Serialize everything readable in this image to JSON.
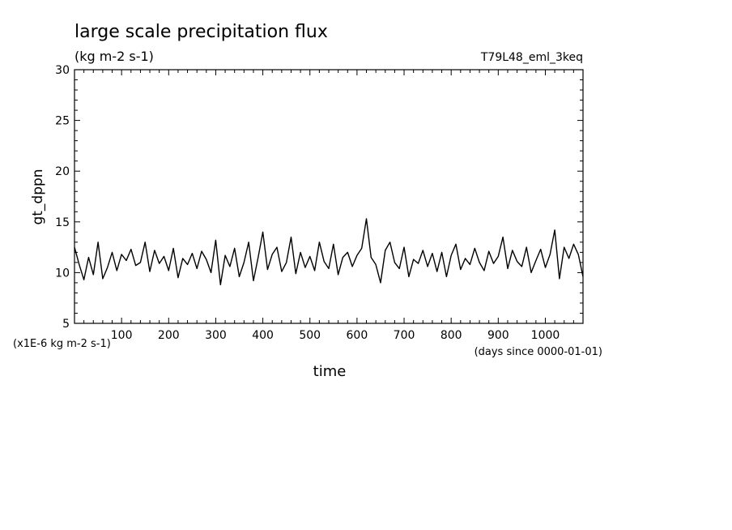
{
  "chart_data": {
    "type": "line",
    "title": "large scale precipitation flux",
    "subtitle": "(kg m-2 s-1)",
    "run_label": "T79L48_eml_3keq",
    "ylabel": "gt_dppn",
    "xlabel": "time",
    "y_scale_note": "(x1E-6 kg m-2 s-1)",
    "x_units_note": "(days since 0000-01-01)",
    "xlim": [
      0,
      1080
    ],
    "ylim": [
      5,
      30
    ],
    "x_ticks": [
      100,
      200,
      300,
      400,
      500,
      600,
      700,
      800,
      900,
      1000
    ],
    "x_tick_labels": [
      "100",
      "200",
      "300",
      "400",
      "500",
      "600",
      "700",
      "800",
      "900",
      "1000"
    ],
    "y_ticks": [
      5,
      10,
      15,
      20,
      25,
      30
    ],
    "y_tick_labels": [
      "5",
      "10",
      "15",
      "20",
      "25",
      "30"
    ],
    "grid": false,
    "line_color": "#000000",
    "series": [
      {
        "x": [
          0,
          10,
          20,
          30,
          40,
          50,
          60,
          70,
          80,
          90,
          100,
          110,
          120,
          130,
          140,
          150,
          160,
          170,
          180,
          190,
          200,
          210,
          220,
          230,
          240,
          250,
          260,
          270,
          280,
          290,
          300,
          310,
          320,
          330,
          340,
          350,
          360,
          370,
          380,
          390,
          400,
          410,
          420,
          430,
          440,
          450,
          460,
          470,
          480,
          490,
          500,
          510,
          520,
          530,
          540,
          550,
          560,
          570,
          580,
          590,
          600,
          610,
          620,
          630,
          640,
          650,
          660,
          670,
          680,
          690,
          700,
          710,
          720,
          730,
          740,
          750,
          760,
          770,
          780,
          790,
          800,
          810,
          820,
          830,
          840,
          850,
          860,
          870,
          880,
          890,
          900,
          910,
          920,
          930,
          940,
          950,
          960,
          970,
          980,
          990,
          1000,
          1010,
          1020,
          1030,
          1040,
          1050,
          1060,
          1070,
          1080
        ],
        "y": [
          12.5,
          10.8,
          9.3,
          11.5,
          9.8,
          13.0,
          9.4,
          10.5,
          12.0,
          10.2,
          11.8,
          11.2,
          12.3,
          10.7,
          11.0,
          13.0,
          10.1,
          12.2,
          10.9,
          11.6,
          10.2,
          12.4,
          9.5,
          11.4,
          10.8,
          11.9,
          10.4,
          12.1,
          11.3,
          10.0,
          13.2,
          8.8,
          11.7,
          10.6,
          12.4,
          9.6,
          11.0,
          13.0,
          9.2,
          11.5,
          14.0,
          10.3,
          11.8,
          12.5,
          10.1,
          11.0,
          13.5,
          9.9,
          12.0,
          10.5,
          11.6,
          10.2,
          13.0,
          11.1,
          10.4,
          12.8,
          9.8,
          11.5,
          12.0,
          10.6,
          11.7,
          12.4,
          15.3,
          11.5,
          10.8,
          9.0,
          12.2,
          13.0,
          11.0,
          10.4,
          12.5,
          9.6,
          11.3,
          10.9,
          12.2,
          10.6,
          11.9,
          10.1,
          12.0,
          9.6,
          11.7,
          12.8,
          10.3,
          11.4,
          10.8,
          12.4,
          11.0,
          10.2,
          12.1,
          10.9,
          11.6,
          13.5,
          10.4,
          12.2,
          11.1,
          10.6,
          12.5,
          10.0,
          11.2,
          12.3,
          10.5,
          11.8,
          14.2,
          9.4,
          12.5,
          11.4,
          12.8,
          11.8,
          9.6
        ]
      }
    ]
  }
}
